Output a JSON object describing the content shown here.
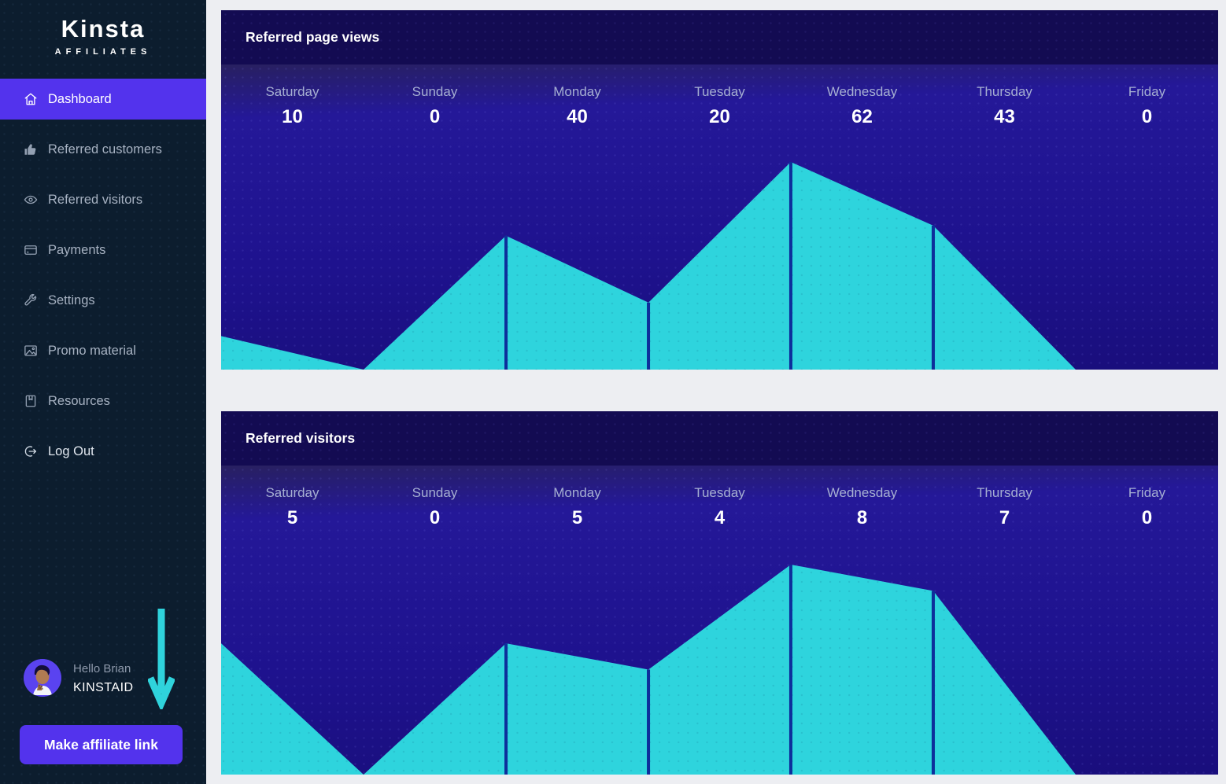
{
  "brand": {
    "name": "Kinsta",
    "tagline": "AFFILIATES"
  },
  "sidebar": {
    "items": [
      {
        "label": "Dashboard",
        "icon": "home-icon",
        "active": true
      },
      {
        "label": "Referred customers",
        "icon": "thumbs-up-icon",
        "active": false
      },
      {
        "label": "Referred visitors",
        "icon": "eye-icon",
        "active": false
      },
      {
        "label": "Payments",
        "icon": "credit-card-icon",
        "active": false
      },
      {
        "label": "Settings",
        "icon": "wrench-icon",
        "active": false
      },
      {
        "label": "Promo material",
        "icon": "image-icon",
        "active": false
      },
      {
        "label": "Resources",
        "icon": "book-icon",
        "active": false
      },
      {
        "label": "Log Out",
        "icon": "logout-icon",
        "active": false,
        "bright": true
      }
    ],
    "user": {
      "greeting": "Hello Brian",
      "username": "KINSTAID"
    },
    "cta_label": "Make affiliate link"
  },
  "chart_data": [
    {
      "type": "area",
      "title": "Referred page views",
      "categories": [
        "Saturday",
        "Sunday",
        "Monday",
        "Tuesday",
        "Wednesday",
        "Thursday",
        "Friday"
      ],
      "values": [
        10,
        0,
        40,
        20,
        62,
        43,
        0
      ],
      "xlabel": "",
      "ylabel": "",
      "ylim": [
        0,
        62
      ],
      "grid": false,
      "legend": false
    },
    {
      "type": "area",
      "title": "Referred visitors",
      "categories": [
        "Saturday",
        "Sunday",
        "Monday",
        "Tuesday",
        "Wednesday",
        "Thursday",
        "Friday"
      ],
      "values": [
        5,
        0,
        5,
        4,
        8,
        7,
        0
      ],
      "xlabel": "",
      "ylabel": "",
      "ylim": [
        0,
        8
      ],
      "grid": false,
      "legend": false
    }
  ],
  "colors": {
    "accent_purple": "#5333ed",
    "sidebar_bg": "#0c1d2e",
    "header_bg": "#130b52",
    "body_indigo": "#1e128e",
    "area_cyan": "#2ed4dd",
    "divider_line": "#0d2f9b",
    "annotation_cyan": "#2fd3dc",
    "page_bg": "#edeef2"
  }
}
